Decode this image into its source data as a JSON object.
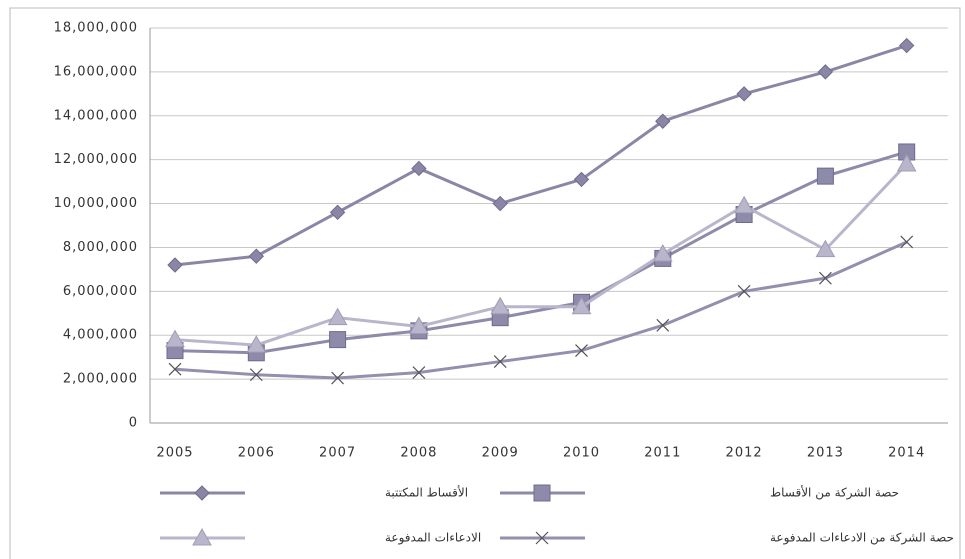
{
  "chart_data": {
    "type": "line",
    "categories": [
      "2005",
      "2006",
      "2007",
      "2008",
      "2009",
      "2010",
      "2011",
      "2012",
      "2013",
      "2014"
    ],
    "series": [
      {
        "name": "الأقساط المكتتبة",
        "color": "#8a86a6",
        "marker": "diamond",
        "values": [
          7200000,
          7600000,
          9600000,
          11600000,
          10000000,
          11100000,
          13750000,
          15000000,
          16000000,
          17200000
        ]
      },
      {
        "name": "حصة الشركة من الأقساط",
        "color": "#8e8aaa",
        "marker": "square",
        "values": [
          3300000,
          3200000,
          3800000,
          4200000,
          4800000,
          5500000,
          7500000,
          9500000,
          11250000,
          12350000
        ]
      },
      {
        "name": "الادعاءات المدفوعة",
        "color": "#b9b6cb",
        "marker": "triangle",
        "values": [
          3800000,
          3550000,
          4800000,
          4400000,
          5300000,
          5300000,
          7700000,
          9900000,
          7900000,
          11800000
        ]
      },
      {
        "name": "حصة الشركة من الادعاءات المدفوعة",
        "color": "#948fae",
        "marker": "x",
        "values": [
          2450000,
          2200000,
          2050000,
          2300000,
          2800000,
          3300000,
          4450000,
          6000000,
          6600000,
          8250000
        ]
      }
    ],
    "ylim": [
      0,
      18000000
    ],
    "yticks": [
      0,
      {
        "value": 2000000,
        "label": "2,000,000"
      },
      {
        "value": 4000000,
        "label": "4,000,000"
      },
      {
        "value": 6000000,
        "label": "6,000,000"
      },
      {
        "value": 8000000,
        "label": "8,000,000"
      },
      {
        "value": 10000000,
        "label": "10,000,000"
      },
      {
        "value": 12000000,
        "label": "12,000,000"
      },
      {
        "value": 14000000,
        "label": "14,000,000"
      },
      {
        "value": 16000000,
        "label": "16,000,000"
      },
      {
        "value": 18000000,
        "label": "18,000,000"
      }
    ],
    "grid": true
  }
}
